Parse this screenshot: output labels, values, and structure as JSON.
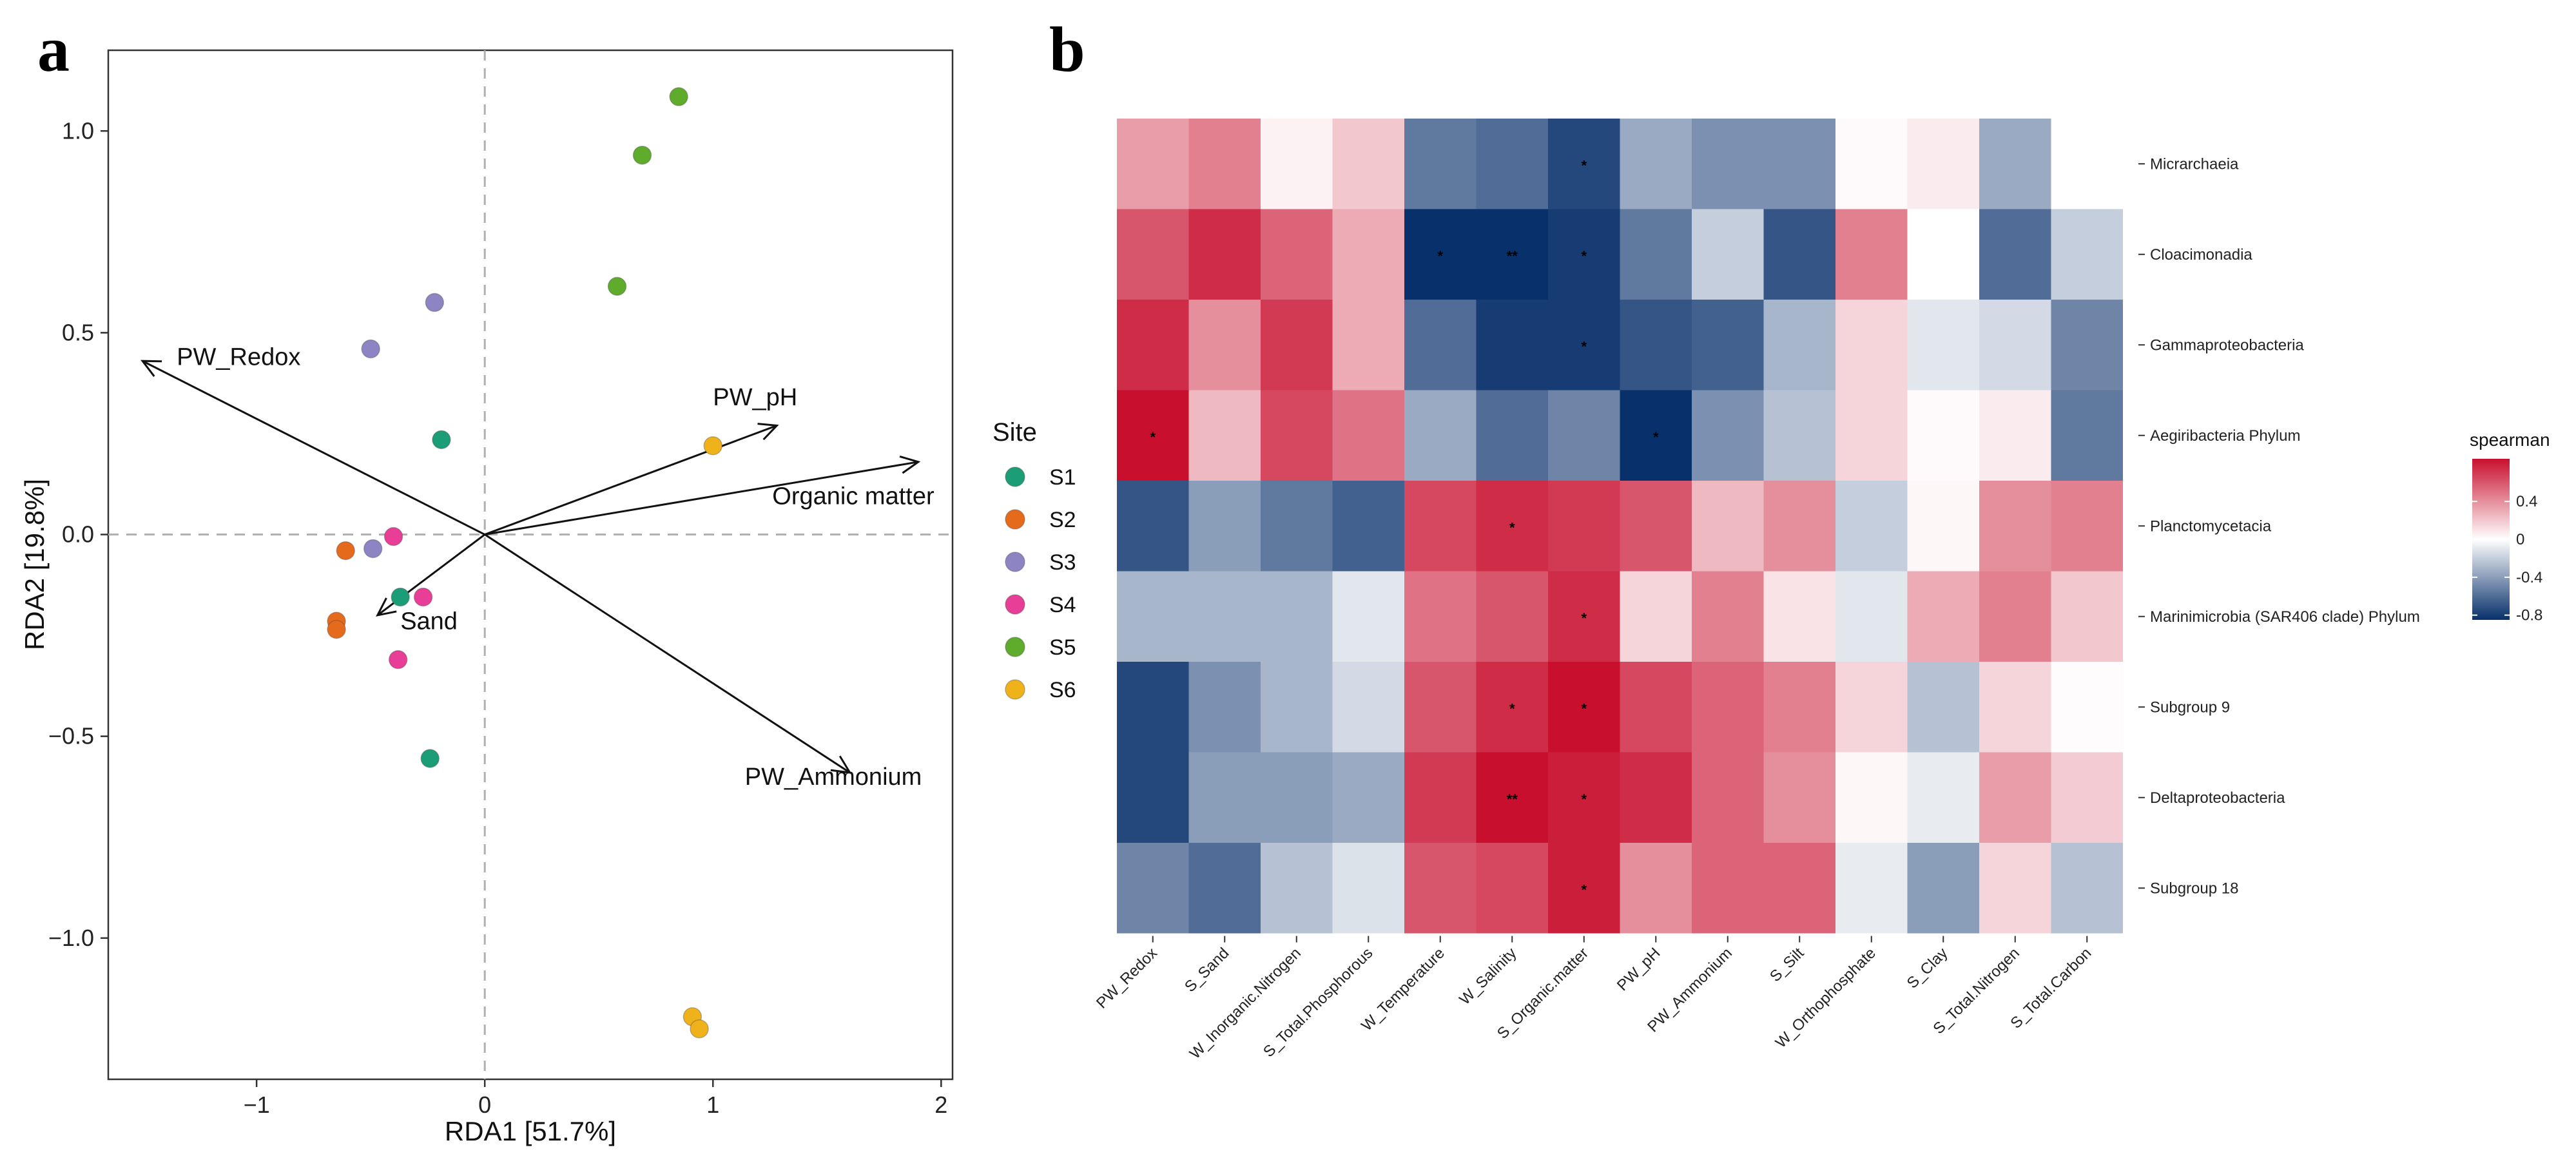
{
  "panels": {
    "a": "a",
    "b": "b"
  },
  "chart_data": [
    {
      "type": "scatter",
      "subtype": "RDA biplot",
      "xlabel": "RDA1 [51.7%]",
      "ylabel": "RDA2 [19.8%]",
      "xlim": [
        -1.65,
        2.05
      ],
      "ylim": [
        -1.35,
        1.2
      ],
      "xticks": [
        -1,
        0,
        1,
        2
      ],
      "xtick_labels": [
        "−1",
        "0",
        "1",
        "2"
      ],
      "yticks": [
        -1.0,
        -0.5,
        0.0,
        0.5,
        1.0
      ],
      "ytick_labels": [
        "−1.0",
        "−0.5",
        "0.0",
        "0.5",
        "1.0"
      ],
      "legend": {
        "title": "Site",
        "entries": [
          {
            "name": "S1",
            "color": "#1b9e77"
          },
          {
            "name": "S2",
            "color": "#e66a1c"
          },
          {
            "name": "S3",
            "color": "#8d84c4"
          },
          {
            "name": "S4",
            "color": "#e83e97"
          },
          {
            "name": "S5",
            "color": "#5fac2c"
          },
          {
            "name": "S6",
            "color": "#f0b21a"
          }
        ]
      },
      "points": [
        {
          "site": "S1",
          "x": -0.19,
          "y": 0.235
        },
        {
          "site": "S1",
          "x": -0.37,
          "y": -0.155
        },
        {
          "site": "S1",
          "x": -0.24,
          "y": -0.555
        },
        {
          "site": "S2",
          "x": -0.61,
          "y": -0.04
        },
        {
          "site": "S2",
          "x": -0.65,
          "y": -0.215
        },
        {
          "site": "S2",
          "x": -0.65,
          "y": -0.235
        },
        {
          "site": "S3",
          "x": -0.22,
          "y": 0.575
        },
        {
          "site": "S3",
          "x": -0.5,
          "y": 0.46
        },
        {
          "site": "S3",
          "x": -0.49,
          "y": -0.035
        },
        {
          "site": "S4",
          "x": -0.4,
          "y": -0.005
        },
        {
          "site": "S4",
          "x": -0.27,
          "y": -0.155
        },
        {
          "site": "S4",
          "x": -0.38,
          "y": -0.31
        },
        {
          "site": "S5",
          "x": 0.85,
          "y": 1.085
        },
        {
          "site": "S5",
          "x": 0.69,
          "y": 0.94
        },
        {
          "site": "S5",
          "x": 0.58,
          "y": 0.615
        },
        {
          "site": "S6",
          "x": 1.0,
          "y": 0.22
        },
        {
          "site": "S6",
          "x": 0.91,
          "y": -1.195
        },
        {
          "site": "S6",
          "x": 0.94,
          "y": -1.225
        }
      ],
      "arrows": [
        {
          "label": "PW_Redox",
          "x": -1.5,
          "y": 0.43,
          "label_x": -1.35,
          "label_y": 0.42
        },
        {
          "label": "PW_pH",
          "x": 1.28,
          "y": 0.27,
          "label_x": 1.0,
          "label_y": 0.32
        },
        {
          "label": "Organic matter",
          "x": 1.9,
          "y": 0.18,
          "label_x": 1.26,
          "label_y": 0.075
        },
        {
          "label": "PW_Ammonium",
          "x": 1.6,
          "y": -0.59,
          "label_x": 1.14,
          "label_y": -0.62
        },
        {
          "label": "Sand",
          "x": -0.47,
          "y": -0.2,
          "label_x": -0.37,
          "label_y": -0.235
        }
      ]
    },
    {
      "type": "heatmap",
      "columns": [
        "PW_Redox",
        "S_Sand",
        "W_Inorganic.Nitrogen",
        "S_Total.Phosphorous",
        "W_Temperature",
        "W_Salinity",
        "S_Organic.matter",
        "PW_pH",
        "PW_Ammonium",
        "S_Silt",
        "W_Orthophosphate",
        "S_Clay",
        "S_Total.Nitrogen",
        "S_Total.Carbon"
      ],
      "rows": [
        "Micrarchaeia",
        "Cloacimonadia",
        "Gammaproteobacteria",
        "Aegiribacteria Phylum",
        "Planctomycetacia",
        "Marinimicrobia (SAR406 clade) Phylum",
        "Subgroup 9",
        "Deltaproteobacteria",
        "Subgroup 18"
      ],
      "values": [
        [
          0.35,
          0.45,
          0.05,
          0.2,
          -0.55,
          -0.6,
          -0.75,
          -0.35,
          -0.45,
          -0.45,
          0.02,
          0.07,
          -0.35,
          null
        ],
        [
          0.6,
          0.75,
          0.55,
          0.3,
          -0.9,
          -0.95,
          -0.8,
          -0.55,
          -0.2,
          -0.7,
          0.45,
          0.0,
          -0.6,
          -0.2
        ],
        [
          0.75,
          0.4,
          0.7,
          0.3,
          -0.6,
          -0.8,
          -0.8,
          -0.7,
          -0.65,
          -0.3,
          0.15,
          -0.1,
          -0.15,
          -0.5
        ],
        [
          0.85,
          0.25,
          0.65,
          0.5,
          -0.35,
          -0.6,
          -0.5,
          -0.9,
          -0.45,
          -0.25,
          0.15,
          0.02,
          0.07,
          -0.55
        ],
        [
          -0.7,
          -0.4,
          -0.55,
          -0.65,
          0.65,
          0.75,
          0.7,
          0.6,
          0.25,
          0.4,
          -0.2,
          0.03,
          0.4,
          0.45
        ],
        [
          -0.3,
          -0.3,
          -0.3,
          -0.1,
          0.5,
          0.6,
          0.75,
          0.15,
          0.45,
          0.1,
          -0.1,
          0.3,
          0.45,
          0.2
        ],
        [
          -0.75,
          -0.45,
          -0.3,
          -0.15,
          0.6,
          0.75,
          0.85,
          0.65,
          0.55,
          0.45,
          0.15,
          -0.25,
          0.15,
          0.01
        ],
        [
          -0.75,
          -0.4,
          -0.4,
          -0.35,
          0.7,
          0.85,
          0.8,
          0.75,
          0.55,
          0.4,
          0.03,
          -0.08,
          0.35,
          0.18
        ],
        [
          -0.5,
          -0.6,
          -0.25,
          -0.12,
          0.6,
          0.65,
          0.8,
          0.4,
          0.55,
          0.55,
          -0.08,
          -0.4,
          0.15,
          -0.25
        ]
      ],
      "stars": [
        [
          "",
          "",
          "",
          "",
          "",
          "",
          "*",
          "",
          "",
          "",
          "",
          "",
          "",
          ""
        ],
        [
          "",
          "",
          "",
          "",
          "*",
          "**",
          "*",
          "",
          "",
          "",
          "",
          "",
          "",
          ""
        ],
        [
          "",
          "",
          "",
          "",
          "",
          "",
          "*",
          "",
          "",
          "",
          "",
          "",
          "",
          ""
        ],
        [
          "*",
          "",
          "",
          "",
          "",
          "",
          "",
          "*",
          "",
          "",
          "",
          "",
          "",
          ""
        ],
        [
          "",
          "",
          "",
          "",
          "",
          "*",
          "",
          "",
          "",
          "",
          "",
          "",
          "",
          ""
        ],
        [
          "",
          "",
          "",
          "",
          "",
          "",
          "*",
          "",
          "",
          "",
          "",
          "",
          "",
          ""
        ],
        [
          "",
          "",
          "",
          "",
          "",
          "*",
          "*",
          "",
          "",
          "",
          "",
          "",
          "",
          ""
        ],
        [
          "",
          "",
          "",
          "",
          "",
          "**",
          "*",
          "",
          "",
          "",
          "",
          "",
          "",
          ""
        ],
        [
          "",
          "",
          "",
          "",
          "",
          "",
          "*",
          "",
          "",
          "",
          "",
          "",
          "",
          ""
        ]
      ],
      "colorbar": {
        "title": "spearman",
        "range": [
          -0.85,
          0.85
        ],
        "ticks": [
          0.4,
          0.0,
          -0.4,
          -0.8
        ],
        "tick_labels": [
          "0.4",
          "0",
          "-0.4",
          "-0.8"
        ],
        "low_color": "#08306b",
        "mid_color": "#ffffff",
        "high_color": "#c8102e"
      }
    }
  ]
}
